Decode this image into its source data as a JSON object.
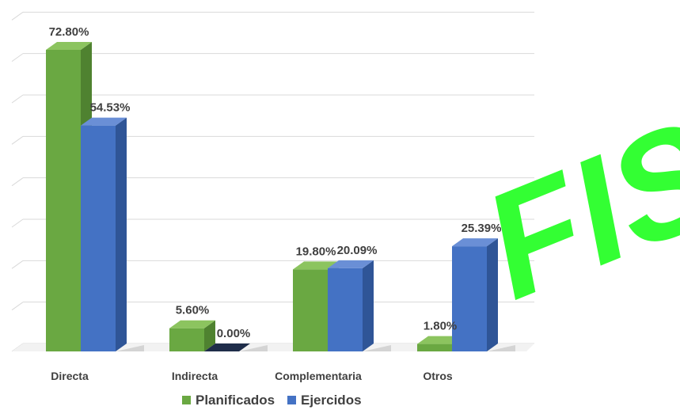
{
  "chart_data": {
    "type": "bar",
    "categories": [
      "Directa",
      "Indirecta",
      "Complementaria",
      "Otros"
    ],
    "series": [
      {
        "name": "Planificados",
        "values": [
          72.8,
          5.6,
          19.8,
          1.8
        ],
        "labels": [
          "72.80%",
          "5.60%",
          "19.80%",
          "1.80%"
        ],
        "color": "#6aa842",
        "side_color": "#4f8230",
        "top_color": "#8cc45f"
      },
      {
        "name": "Ejercidos",
        "values": [
          54.53,
          0.0,
          20.09,
          25.39
        ],
        "labels": [
          "54.53%",
          "0.00%",
          "20.09%",
          "25.39%"
        ],
        "color": "#4472c4",
        "side_color": "#2f5597",
        "top_color": "#6a8fd6"
      }
    ],
    "ylim": [
      0,
      80
    ],
    "grid": true,
    "axis_tick_labels_visible": false,
    "legend_position": "bottom",
    "title": "",
    "xlabel": "",
    "ylabel": ""
  },
  "watermark": {
    "text": "FIS",
    "color": "#33ff33"
  }
}
